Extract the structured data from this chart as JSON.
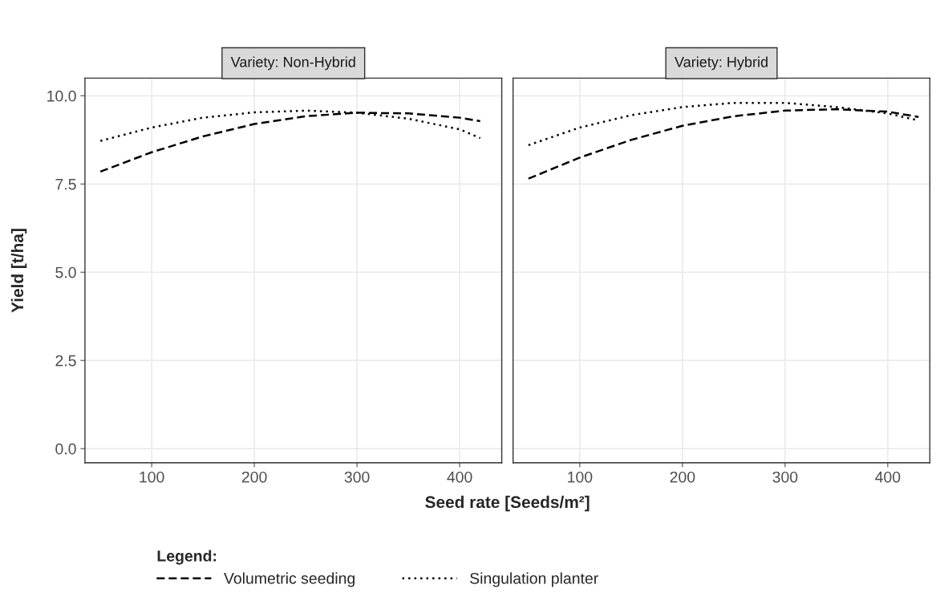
{
  "chart_data": [
    {
      "type": "line",
      "title": "Variety: Non-Hybrid",
      "xlabel": "Seed rate [Seeds/m²]",
      "ylabel": "Yield [t/ha]",
      "legend_title": "Legend:",
      "legend": "bottom",
      "grid": true,
      "xlim": [
        35,
        441
      ],
      "ylim": [
        -0.4,
        10.5
      ],
      "xticks": [
        100,
        200,
        300,
        400
      ],
      "yticks": [
        {
          "value": 0,
          "label": "0.0"
        },
        {
          "value": 2.5,
          "label": "2.5"
        },
        {
          "value": 5,
          "label": "5.0"
        },
        {
          "value": 7.5,
          "label": "7.5"
        },
        {
          "value": 10,
          "label": "10.0"
        }
      ],
      "series": [
        {
          "name": "Volumetric seeding",
          "color": "#000000",
          "line_style": "dashed",
          "x": [
            50,
            100,
            150,
            200,
            250,
            300,
            350,
            400,
            420
          ],
          "values": [
            7.85,
            8.4,
            8.85,
            9.2,
            9.42,
            9.52,
            9.5,
            9.38,
            9.28
          ]
        },
        {
          "name": "Singulation planter",
          "color": "#000000",
          "line_style": "dotted",
          "x": [
            50,
            100,
            150,
            200,
            250,
            300,
            350,
            400,
            420
          ],
          "values": [
            8.72,
            9.1,
            9.38,
            9.53,
            9.58,
            9.52,
            9.35,
            9.05,
            8.8
          ]
        }
      ]
    },
    {
      "type": "line",
      "title": "Variety: Hybrid",
      "grid": true,
      "tick_labels": "x",
      "xlim": [
        35,
        441
      ],
      "ylim": [
        -0.4,
        10.5
      ],
      "xticks": [
        100,
        200,
        300,
        400
      ],
      "yticks": [
        0,
        2.5,
        5,
        7.5,
        10
      ],
      "series": [
        {
          "color": "#000000",
          "line_style": "dashed",
          "x": [
            50,
            100,
            150,
            200,
            250,
            300,
            350,
            400,
            430
          ],
          "values": [
            7.65,
            8.25,
            8.75,
            9.15,
            9.42,
            9.58,
            9.62,
            9.55,
            9.4
          ]
        },
        {
          "color": "#000000",
          "line_style": "dotted",
          "x": [
            50,
            100,
            150,
            200,
            250,
            300,
            350,
            400,
            430
          ],
          "values": [
            8.6,
            9.1,
            9.45,
            9.68,
            9.8,
            9.8,
            9.68,
            9.5,
            9.3
          ]
        }
      ]
    }
  ]
}
